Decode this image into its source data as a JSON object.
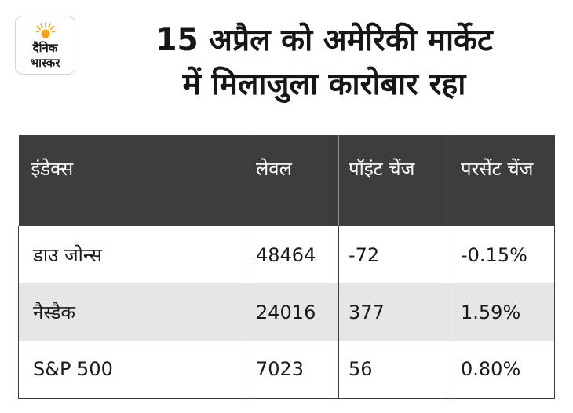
{
  "logo": {
    "icon": "sun-icon",
    "line1": "दैनिक",
    "line2": "भास्कर",
    "color": "#f2a31b"
  },
  "title": {
    "line1": "15 अप्रैल को अमेरिकी मार्केट",
    "line2": "में मिलाजुला कारोबार रहा"
  },
  "table": {
    "headers": [
      "इंडेक्स",
      "लेवल",
      "पॉइंट चेंज",
      "परसेंट चेंज"
    ],
    "rows": [
      [
        "डाउ जोन्स",
        "48464",
        "-72",
        "-0.15%"
      ],
      [
        "नैस्डैक",
        "24016",
        "377",
        "1.59%"
      ],
      [
        "S&P 500",
        "7023",
        "56",
        "0.80%"
      ]
    ],
    "header_bg": "#3d3d3d",
    "shaded_row_bg": "#e6e6e6"
  }
}
